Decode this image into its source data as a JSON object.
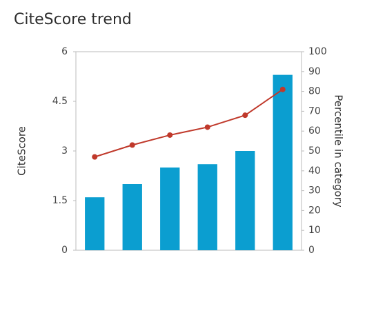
{
  "chart_data": {
    "type": "bar-line",
    "title": "CiteScore trend",
    "y_label": "CiteScore",
    "y2_label": "Percentile in category",
    "categories": [
      null,
      null,
      null,
      null,
      null,
      null
    ],
    "series": [
      {
        "type": "bar",
        "color": "#0b9ed0",
        "values": [
          1.6,
          2.0,
          2.5,
          2.6,
          3.0,
          5.3
        ]
      },
      {
        "type": "line",
        "axis": "y2",
        "color": "#c0392b",
        "values": [
          47,
          53,
          58,
          62,
          68,
          81
        ]
      }
    ],
    "ylim": [
      0,
      6
    ],
    "yticks": [
      0,
      1.5,
      3,
      4.5,
      6
    ],
    "y2lim": [
      0,
      100
    ],
    "y2ticks": [
      0,
      10,
      20,
      30,
      40,
      50,
      60,
      70,
      80,
      90,
      100
    ]
  }
}
